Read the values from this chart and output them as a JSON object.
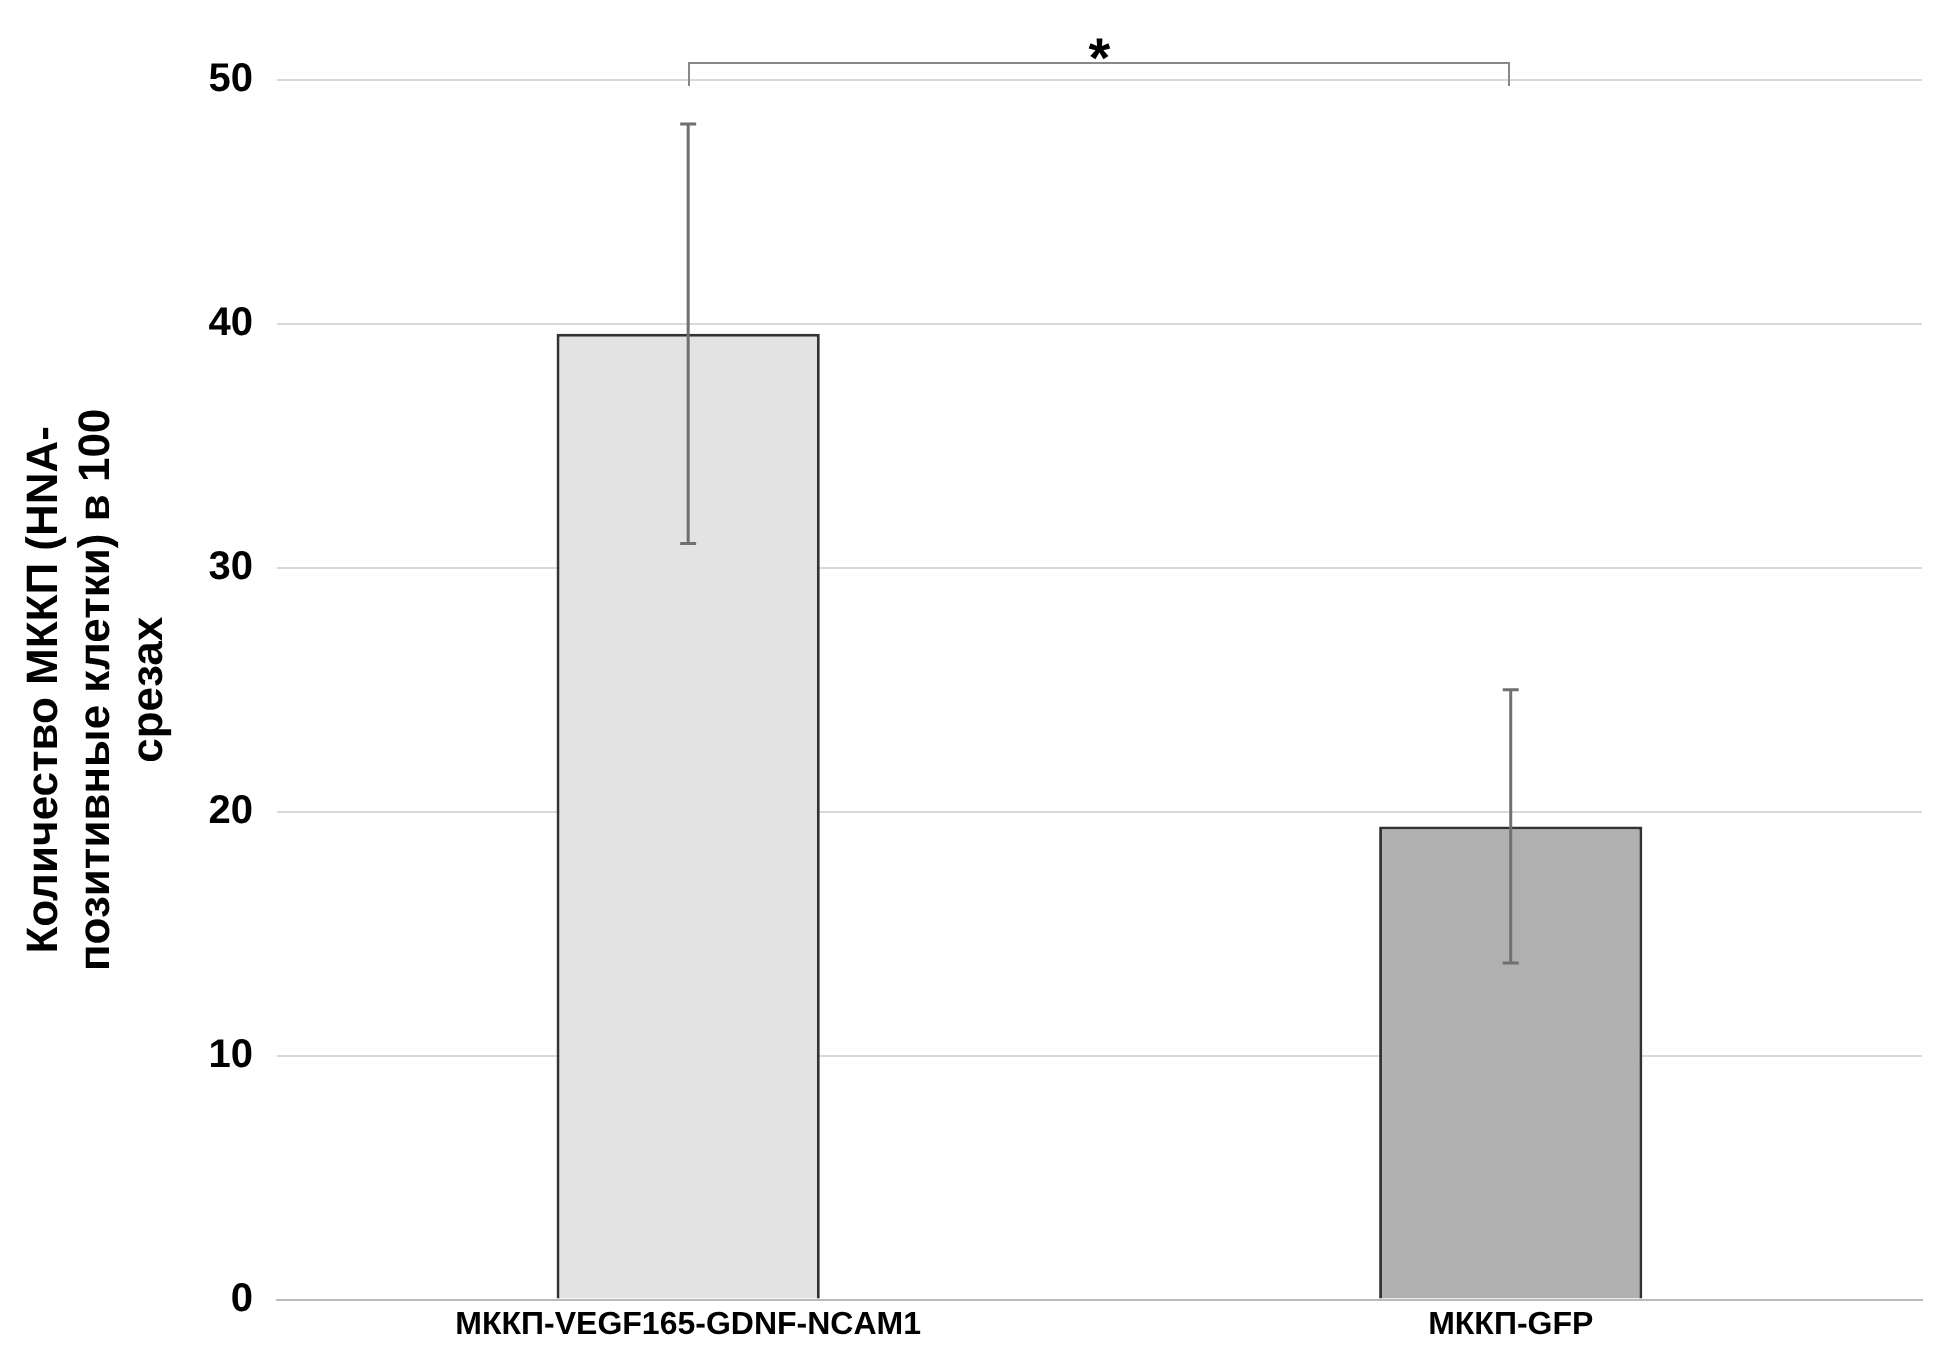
{
  "chart_data": {
    "type": "bar",
    "ylabel": "Количество МККП (HNA-позитивные клетки) в 100 срезах",
    "categories": [
      "МККП-VEGF165-GDNF-NCAM1",
      "МККП-GFP"
    ],
    "values": [
      39.6,
      19.4
    ],
    "errors": [
      8.6,
      5.6
    ],
    "colors": [
      "#e3e3e3",
      "#b0b0b0"
    ],
    "ylim": [
      0,
      50
    ],
    "yticks": [
      0,
      10,
      20,
      30,
      40,
      50
    ],
    "grid": "y",
    "legend": false,
    "annotations": [
      "*"
    ]
  }
}
